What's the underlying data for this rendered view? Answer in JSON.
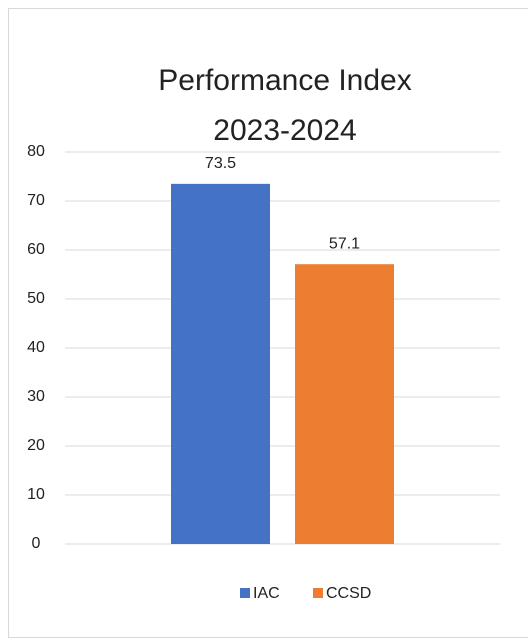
{
  "chart_data": {
    "type": "bar",
    "title": "Performance Index 2023-2024",
    "categories": [
      null
    ],
    "series": [
      {
        "name": "IAC",
        "color": "#4472c4",
        "values": [
          73.5
        ]
      },
      {
        "name": "CCSD",
        "color": "#ed7d31",
        "values": [
          57.1
        ]
      }
    ],
    "ylim": [
      0,
      80
    ],
    "yticks": [
      0,
      10,
      20,
      30,
      40,
      50,
      60,
      70,
      80
    ],
    "grid": true,
    "legend": "bottom"
  }
}
